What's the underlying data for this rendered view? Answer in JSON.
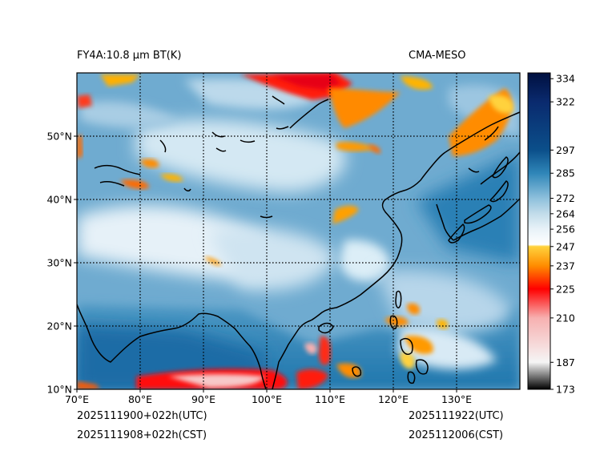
{
  "header": {
    "title_left": "FY4A:10.8 µm BT(K)",
    "title_right": "CMA-MESO"
  },
  "footer": {
    "init_utc": "2025111900+022h(UTC)",
    "init_cst": "2025111908+022h(CST)",
    "valid_utc": "2025111922(UTC)",
    "valid_cst": "2025112006(CST)"
  },
  "map": {
    "lon_range": [
      70,
      140
    ],
    "lat_range": [
      10,
      60
    ],
    "lon_ticks": [
      {
        "value": 70,
        "label": "70°E"
      },
      {
        "value": 80,
        "label": "80°E"
      },
      {
        "value": 90,
        "label": "90°E"
      },
      {
        "value": 100,
        "label": "100°E"
      },
      {
        "value": 110,
        "label": "110°E"
      },
      {
        "value": 120,
        "label": "120°E"
      },
      {
        "value": 130,
        "label": "130°E"
      }
    ],
    "lat_ticks": [
      {
        "value": 10,
        "label": "10°N"
      },
      {
        "value": 20,
        "label": "20°N"
      },
      {
        "value": 30,
        "label": "30°N"
      },
      {
        "value": 40,
        "label": "40°N"
      },
      {
        "value": 50,
        "label": "50°N"
      }
    ]
  },
  "colorbar": {
    "range": [
      173,
      337
    ],
    "ticks": [
      {
        "value": 334,
        "label": "334"
      },
      {
        "value": 322,
        "label": "322"
      },
      {
        "value": 297,
        "label": "297"
      },
      {
        "value": 285,
        "label": "285"
      },
      {
        "value": 272,
        "label": "272"
      },
      {
        "value": 264,
        "label": "264"
      },
      {
        "value": 256,
        "label": "256"
      },
      {
        "value": 247,
        "label": "247"
      },
      {
        "value": 237,
        "label": "237"
      },
      {
        "value": 225,
        "label": "225"
      },
      {
        "value": 210,
        "label": "210"
      },
      {
        "value": 187,
        "label": "187"
      },
      {
        "value": 173,
        "label": "173"
      }
    ],
    "stops": [
      {
        "value": 173,
        "color": "#000000"
      },
      {
        "value": 187,
        "color": "#f5f5f5"
      },
      {
        "value": 210,
        "color": "#f7b0b0"
      },
      {
        "value": 225,
        "color": "#ff0000"
      },
      {
        "value": 237,
        "color": "#ff8c00"
      },
      {
        "value": 247,
        "color": "#ffd23c"
      },
      {
        "value": 248,
        "color": "#ffffff"
      },
      {
        "value": 256,
        "color": "#e8f2f8"
      },
      {
        "value": 264,
        "color": "#c2dcea"
      },
      {
        "value": 272,
        "color": "#8ec0dc"
      },
      {
        "value": 285,
        "color": "#2f86b8"
      },
      {
        "value": 297,
        "color": "#0b4f8a"
      },
      {
        "value": 322,
        "color": "#0a2a6e"
      },
      {
        "value": 337,
        "color": "#001040"
      }
    ]
  }
}
